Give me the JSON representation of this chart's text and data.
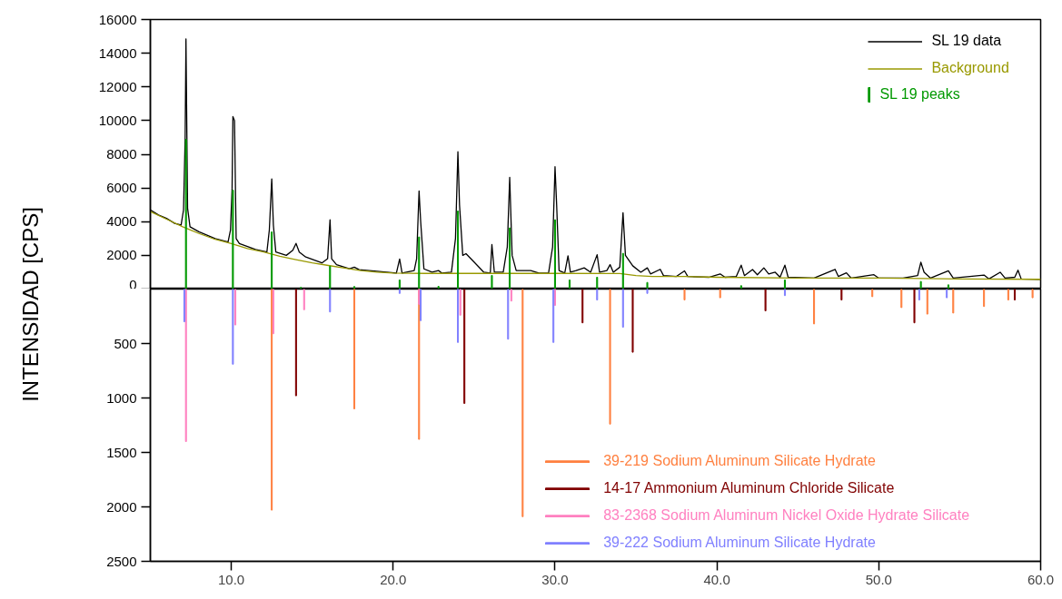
{
  "chart_data": [
    {
      "type": "line",
      "ylabel": "INTENSIDAD [CPS]",
      "xlim": [
        5,
        60
      ],
      "ylim": [
        0,
        16000
      ],
      "yticks": [
        0,
        2000,
        4000,
        6000,
        8000,
        10000,
        12000,
        14000,
        16000
      ],
      "tick_labels": "y",
      "legend": "top right",
      "series": [
        {
          "name": "SL 19 data",
          "color": "#000000",
          "type": "line",
          "x": [
            5.0,
            5.5,
            6.0,
            6.5,
            6.9,
            7.05,
            7.15,
            7.2,
            7.3,
            7.45,
            8.0,
            9.0,
            9.8,
            9.95,
            10.05,
            10.1,
            10.2,
            10.3,
            10.5,
            11.5,
            12.2,
            12.35,
            12.5,
            12.6,
            12.75,
            13.4,
            13.8,
            14.0,
            14.2,
            14.6,
            15.6,
            15.95,
            16.1,
            16.2,
            16.5,
            17.3,
            17.6,
            17.9,
            19.0,
            20.2,
            20.4,
            20.55,
            21.3,
            21.45,
            21.6,
            21.7,
            21.9,
            22.4,
            22.8,
            23.0,
            23.6,
            23.85,
            24.0,
            24.1,
            24.3,
            24.5,
            25.0,
            25.6,
            26.0,
            26.1,
            26.25,
            26.8,
            27.05,
            27.2,
            27.35,
            27.6,
            28.5,
            29.0,
            29.6,
            29.85,
            30.0,
            30.1,
            30.25,
            30.6,
            30.8,
            30.95,
            31.3,
            31.8,
            32.2,
            32.6,
            32.75,
            33.2,
            33.4,
            33.6,
            34.0,
            34.2,
            34.35,
            34.8,
            35.3,
            35.7,
            35.9,
            36.5,
            36.7,
            37.5,
            38.0,
            38.2,
            39.5,
            40.2,
            40.5,
            41.2,
            41.5,
            41.7,
            42.2,
            42.5,
            42.9,
            43.2,
            43.6,
            43.9,
            44.2,
            44.4,
            46.0,
            47.3,
            47.5,
            48.0,
            48.3,
            49.7,
            50.0,
            51.5,
            52.4,
            52.6,
            52.8,
            53.2,
            54.3,
            54.6,
            56.5,
            56.8,
            57.5,
            57.8,
            58.4,
            58.6,
            58.8,
            60.0
          ],
          "values": [
            4700,
            4400,
            4200,
            3900,
            3800,
            4700,
            9000,
            14850,
            4800,
            3700,
            3400,
            3000,
            2800,
            3500,
            6000,
            10240,
            10000,
            3000,
            2700,
            2350,
            2200,
            3500,
            6540,
            3800,
            2200,
            2000,
            2300,
            2710,
            2200,
            1900,
            1550,
            1800,
            4110,
            1800,
            1450,
            1200,
            1300,
            1150,
            1060,
            950,
            1780,
            950,
            1100,
            1800,
            5820,
            4000,
            1200,
            1000,
            1100,
            950,
            1000,
            3000,
            8150,
            5000,
            2000,
            2100,
            1600,
            1000,
            950,
            2640,
            1000,
            1000,
            2500,
            6630,
            2000,
            1100,
            1100,
            950,
            950,
            2500,
            7260,
            5000,
            1100,
            950,
            1970,
            1000,
            1100,
            1260,
            1000,
            2040,
            1000,
            1100,
            1450,
            1000,
            1300,
            4530,
            2000,
            1380,
            1000,
            1260,
            900,
            1170,
            800,
            750,
            1080,
            750,
            700,
            900,
            700,
            750,
            1420,
            800,
            1160,
            850,
            1260,
            900,
            1000,
            700,
            1420,
            700,
            650,
            1170,
            750,
            960,
            650,
            850,
            650,
            650,
            800,
            1590,
            1000,
            650,
            1080,
            650,
            830,
            600,
            1000,
            650,
            700,
            1120,
            600,
            580
          ]
        },
        {
          "name": "Background",
          "color": "#999900",
          "type": "line",
          "x": [
            5,
            6,
            7,
            8,
            9,
            10,
            11,
            12,
            13,
            14,
            15,
            16,
            17,
            18,
            19,
            20,
            22,
            25,
            30,
            34,
            35,
            36,
            38,
            40,
            45,
            50,
            55,
            60
          ],
          "values": [
            4600,
            4150,
            3700,
            3300,
            2950,
            2700,
            2400,
            2200,
            1950,
            1750,
            1550,
            1400,
            1250,
            1100,
            1000,
            950,
            930,
            930,
            930,
            920,
            800,
            750,
            750,
            700,
            650,
            650,
            600,
            580
          ]
        },
        {
          "name": "SL 19 peaks",
          "color": "#009900",
          "type": "bar",
          "x": [
            7.2,
            10.1,
            12.5,
            14.3,
            16.1,
            17.6,
            20.4,
            21.6,
            22.8,
            24.0,
            26.1,
            27.2,
            30.0,
            30.9,
            32.6,
            34.2,
            35.7,
            41.5,
            44.2,
            52.6,
            54.3
          ],
          "values": [
            8890,
            5870,
            3390,
            100,
            1360,
            150,
            540,
            3090,
            160,
            4630,
            810,
            3630,
            4110,
            540,
            700,
            2120,
            390,
            200,
            540,
            450,
            250
          ]
        }
      ]
    },
    {
      "type": "bar",
      "xlim": [
        5,
        60
      ],
      "xticks": [
        {
          "value": 10,
          "label": "10.0"
        },
        {
          "value": 20,
          "label": "20.0"
        },
        {
          "value": 30,
          "label": "30.0"
        },
        {
          "value": 40,
          "label": "40.0"
        },
        {
          "value": 50,
          "label": "50.0"
        },
        {
          "value": 60,
          "label": "60.0"
        }
      ],
      "ylim": [
        2500,
        0
      ],
      "yticks": [
        500,
        1000,
        1500,
        2000,
        2500
      ],
      "legend": "bottom right",
      "series": [
        {
          "name": "39-219 Sodium Aluminum Silicate Hydrate",
          "color": "#ff8040",
          "x": [
            12.5,
            17.6,
            21.6,
            28.0,
            33.4,
            38.0,
            40.2,
            46.0,
            49.6,
            51.4,
            53.0,
            54.6,
            56.5,
            58.0,
            59.5
          ],
          "values": [
            2030,
            1100,
            1380,
            2090,
            1240,
            100,
            80,
            320,
            70,
            170,
            230,
            220,
            160,
            100,
            80
          ]
        },
        {
          "name": "14-17 Ammonium Aluminum Chloride Silicate",
          "color": "#800000",
          "x": [
            14.0,
            24.4,
            31.7,
            34.8,
            43.0,
            47.7,
            52.2,
            58.4
          ],
          "values": [
            980,
            1050,
            310,
            580,
            200,
            100,
            310,
            100
          ]
        },
        {
          "name": "83-2368 Sodium Aluminum Nickel Oxide Hydrate Silicate",
          "color": "#ff80c0",
          "x": [
            7.2,
            10.25,
            12.6,
            14.5,
            21.6,
            24.15,
            27.3,
            30.0
          ],
          "values": [
            1400,
            330,
            410,
            190,
            140,
            240,
            110,
            150
          ]
        },
        {
          "name": "39-222 Sodium Aluminum Silicate Hydrate",
          "color": "#8080ff",
          "x": [
            7.1,
            10.1,
            16.1,
            20.4,
            21.7,
            24.0,
            27.1,
            29.9,
            32.6,
            34.2,
            35.7,
            44.2,
            52.5,
            54.2
          ],
          "values": [
            300,
            690,
            210,
            40,
            290,
            490,
            460,
            490,
            100,
            350,
            40,
            60,
            100,
            80
          ]
        }
      ]
    }
  ]
}
